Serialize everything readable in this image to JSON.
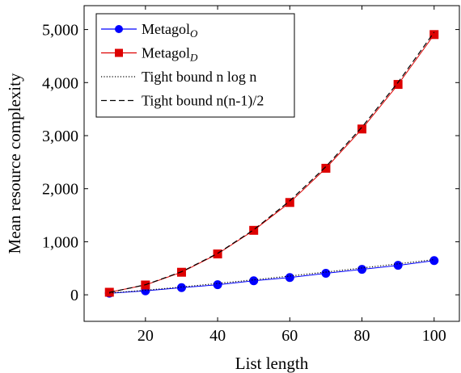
{
  "chart_data": {
    "type": "line",
    "xlabel": "List length",
    "ylabel": "Mean resource complexity",
    "xlim": [
      3,
      107
    ],
    "ylim": [
      -500,
      5450
    ],
    "xticks": [
      20,
      40,
      60,
      80,
      100
    ],
    "xtick_labels": [
      "20",
      "40",
      "60",
      "80",
      "100"
    ],
    "yticks": [
      0,
      1000,
      2000,
      3000,
      4000,
      5000
    ],
    "ytick_labels": [
      "0",
      "1,000",
      "2,000",
      "3,000",
      "4,000",
      "5,000"
    ],
    "grid": false,
    "legend_position": "top-left",
    "x": [
      10,
      20,
      30,
      40,
      50,
      60,
      70,
      80,
      90,
      100
    ],
    "series": [
      {
        "name": "Metagol",
        "name_sub": "O",
        "color": "#0000ff",
        "line_style": "solid",
        "marker": "circle",
        "values": [
          30,
          75,
          135,
          190,
          265,
          325,
          405,
          480,
          555,
          645
        ]
      },
      {
        "name": "Metagol",
        "name_sub": "D",
        "color": "#dd0000",
        "line_style": "solid",
        "marker": "square",
        "values": [
          48,
          185,
          425,
          770,
          1215,
          1740,
          2385,
          3125,
          3965,
          4905
        ]
      },
      {
        "name": "Tight bound n log n",
        "name_sub": "",
        "color": "#000000",
        "line_style": "dotted",
        "marker": "none",
        "values": [
          33,
          86,
          147,
          213,
          282,
          354,
          429,
          506,
          584,
          664
        ]
      },
      {
        "name": "Tight bound n(n-1)/2",
        "name_sub": "",
        "color": "#000000",
        "line_style": "dashed",
        "marker": "none",
        "values": [
          45,
          190,
          435,
          780,
          1225,
          1770,
          2415,
          3160,
          4005,
          4950
        ]
      }
    ]
  }
}
